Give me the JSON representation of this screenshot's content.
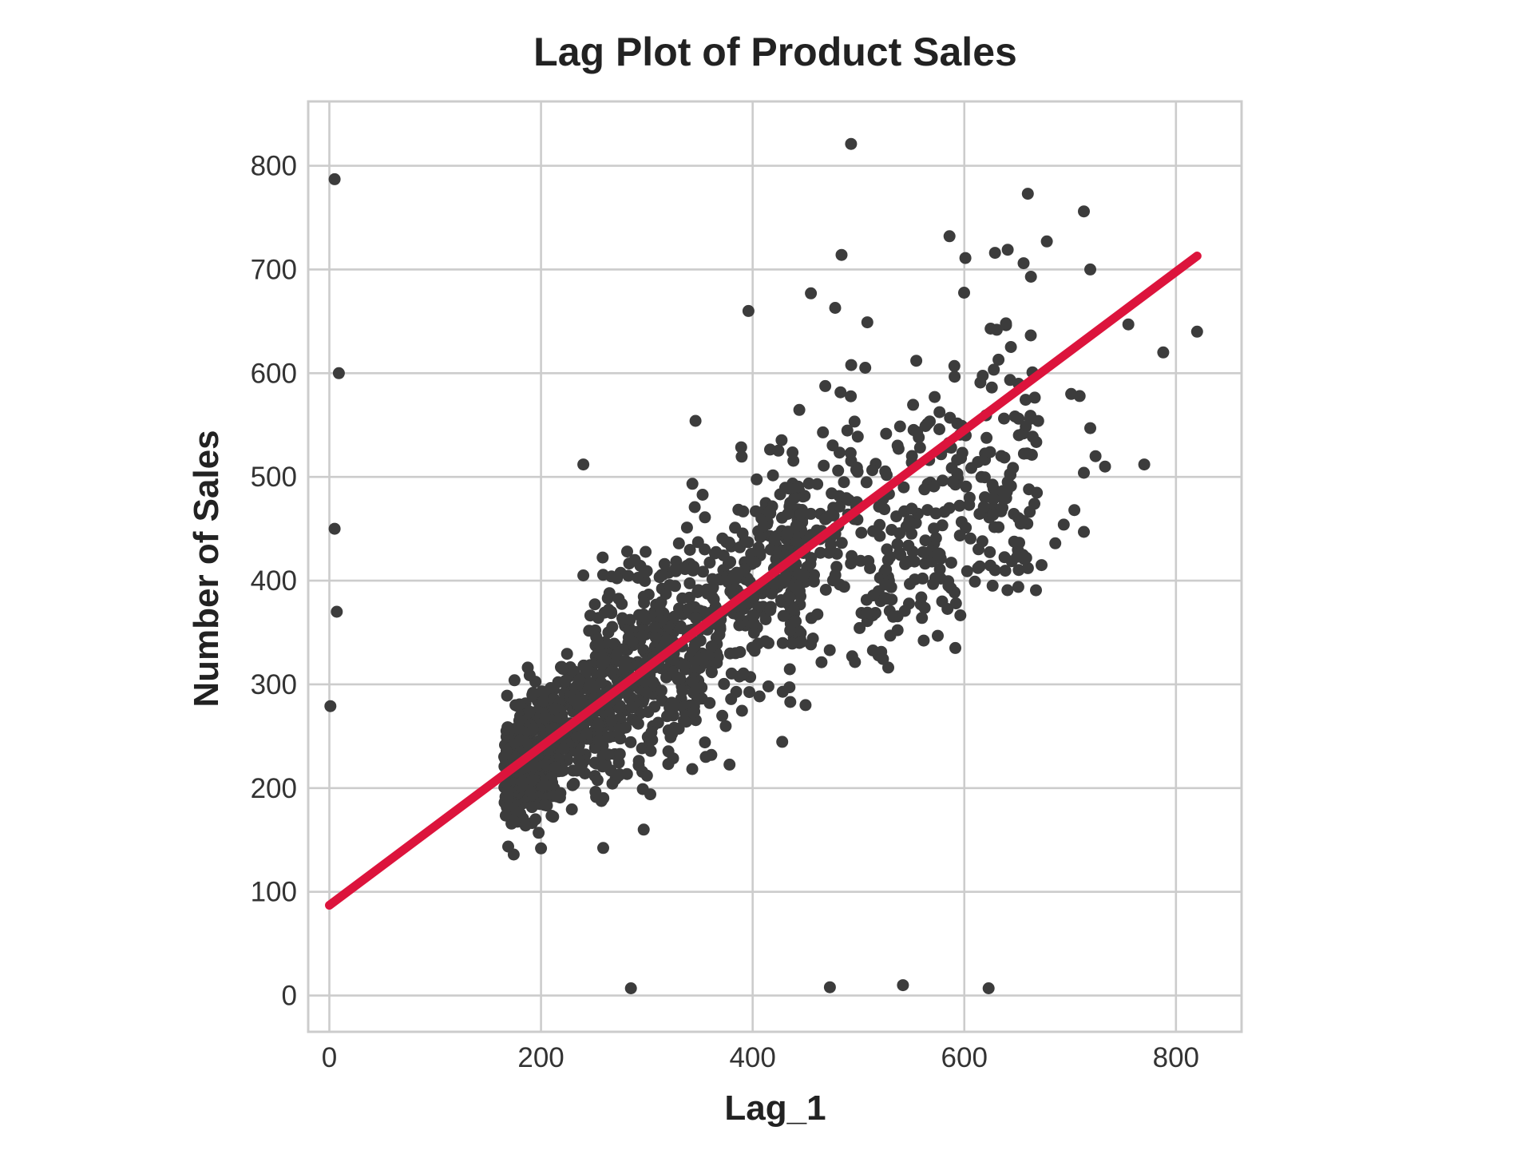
{
  "chart_data": {
    "type": "scatter",
    "title": "Lag Plot of Product Sales",
    "xlabel": "Lag_1",
    "ylabel": "Number of Sales",
    "xlim": [
      -20,
      862
    ],
    "ylim": [
      -35,
      862
    ],
    "xticks": [
      0,
      200,
      400,
      600,
      800
    ],
    "yticks": [
      0,
      100,
      200,
      300,
      400,
      500,
      600,
      700,
      800
    ],
    "grid": true,
    "point_color": "#3c3c3c",
    "line_color": "#dc143c",
    "regression_line": {
      "x": [
        0,
        820
      ],
      "y": [
        87,
        713
      ]
    },
    "sample_points": [
      [
        5,
        787
      ],
      [
        9,
        600
      ],
      [
        5,
        450
      ],
      [
        7,
        370
      ],
      [
        1,
        279
      ],
      [
        493,
        821
      ],
      [
        660,
        773
      ],
      [
        713,
        756
      ],
      [
        678,
        727
      ],
      [
        484,
        714
      ],
      [
        719,
        700
      ],
      [
        586,
        732
      ],
      [
        601,
        711
      ],
      [
        629,
        716
      ],
      [
        641,
        719
      ],
      [
        656,
        706
      ],
      [
        663,
        693
      ],
      [
        396,
        660
      ],
      [
        455,
        677
      ],
      [
        478,
        663
      ],
      [
        820,
        640
      ],
      [
        788,
        620
      ],
      [
        755,
        647
      ],
      [
        770,
        512
      ],
      [
        719,
        547
      ],
      [
        733,
        510
      ],
      [
        713,
        504
      ],
      [
        724,
        520
      ],
      [
        704,
        468
      ],
      [
        694,
        454
      ],
      [
        713,
        447
      ],
      [
        686,
        436
      ],
      [
        673,
        415
      ],
      [
        701,
        580
      ],
      [
        709,
        578
      ],
      [
        240,
        512
      ],
      [
        346,
        554
      ],
      [
        240,
        405
      ],
      [
        285,
        7
      ],
      [
        473,
        8
      ],
      [
        542,
        10
      ],
      [
        623,
        7
      ],
      [
        450,
        280
      ],
      [
        494,
        327
      ],
      [
        530,
        347
      ],
      [
        560,
        364
      ],
      [
        585,
        395
      ],
      [
        610,
        399
      ],
      [
        629,
        410
      ],
      [
        650,
        423
      ]
    ]
  }
}
